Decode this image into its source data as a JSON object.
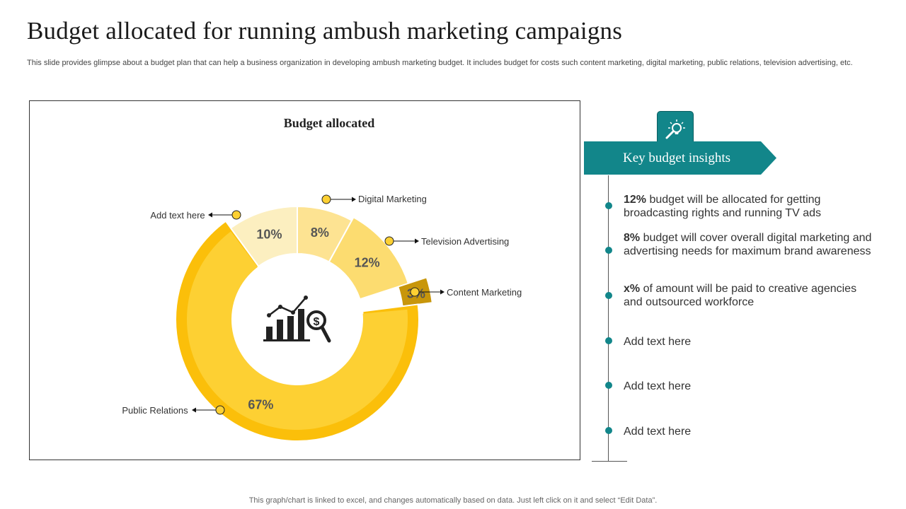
{
  "page": {
    "title": "Budget allocated for running ambush marketing campaigns",
    "subtitle": "This slide provides glimpse about a budget plan that can help a business organization in developing ambush marketing budget. It includes budget for costs such content marketing, digital marketing, public relations, television advertising, etc.",
    "footer": "This graph/chart is linked to excel,  and changes automatically based on data. Just left click on it and select “Edit Data”."
  },
  "chart_data": {
    "type": "pie",
    "title": "Budget allocated",
    "categories": [
      "Public Relations",
      "Add text here",
      "Digital Marketing",
      "Television  Advertising",
      "Content Marketing"
    ],
    "values": [
      67,
      10,
      8,
      12,
      3
    ],
    "value_labels": [
      "67%",
      "10%",
      "8%",
      "12%",
      "3%"
    ],
    "colors": [
      "#fdd033",
      "#fcefc0",
      "#fde392",
      "#fcdc70",
      "#c8960a"
    ],
    "center_icon": "chart-money-search-icon"
  },
  "insights": {
    "icon": "lightbulb-search-icon",
    "heading": "Key budget insights",
    "items": [
      {
        "pct": "12%",
        "text": " budget will be allocated for getting broadcasting rights and running TV ads"
      },
      {
        "pct": "8%",
        "text": " budget will cover overall digital marketing and advertising needs for maximum brand awareness"
      },
      {
        "pct": "x%",
        "text": " of amount will be paid to creative agencies and outsourced workforce"
      },
      {
        "pct": "",
        "text": "Add text here"
      },
      {
        "pct": "",
        "text": "Add text here"
      },
      {
        "pct": "",
        "text": "Add text here"
      }
    ],
    "accent_color": "#12868a"
  }
}
